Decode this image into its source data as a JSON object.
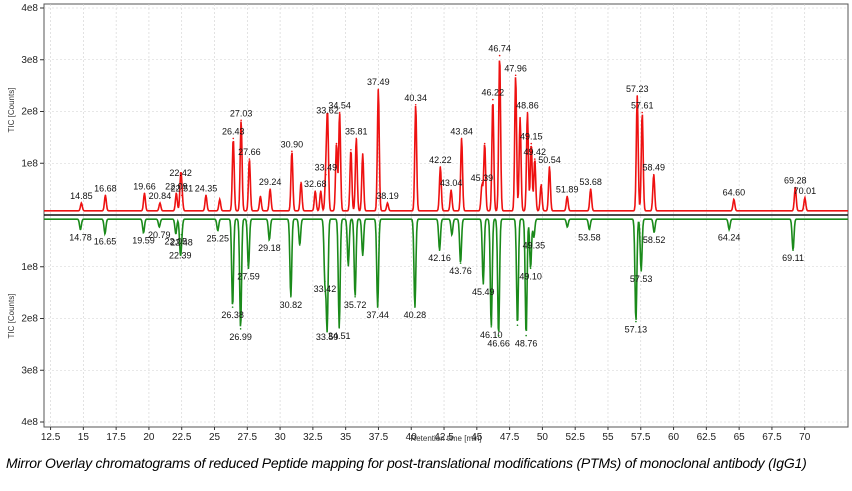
{
  "caption": "Mirror Overlay chromatograms of reduced Peptide mapping for post-translational modifications (PTMs) of monoclonal antibody (IgG1)",
  "chart_data": {
    "type": "line",
    "chart_style": "mirror",
    "xlabel": "Retention time [min]",
    "ylabel": "TIC [Counts]",
    "xlim": [
      12,
      73.3
    ],
    "ylim": [
      0,
      400000000
    ],
    "x_ticks": [
      "12.5",
      "15",
      "17.5",
      "20",
      "22.5",
      "25",
      "27.5",
      "30",
      "32.5",
      "35",
      "37.5",
      "40",
      "42.5",
      "45",
      "47.5",
      "50",
      "52.5",
      "55",
      "57.5",
      "60",
      "62.5",
      "65",
      "67.5",
      "70"
    ],
    "y_ticks_top": [
      "1e8",
      "2e8",
      "3e8",
      "4e8"
    ],
    "y_ticks_bottom": [
      "1e8",
      "2e8",
      "3e8",
      "4e8"
    ],
    "grid": true,
    "baseline": 8000000,
    "colors": {
      "top": "#ee1111",
      "bottom": "#1a8a1a",
      "grid": "#d0d0d0"
    },
    "series": [
      {
        "color": "#ee1111",
        "direction": "up",
        "peaks": [
          {
            "x": 14.85,
            "y": 15000000,
            "label": "14.85"
          },
          {
            "x": 16.68,
            "y": 30000000,
            "label": "16.68"
          },
          {
            "x": 19.66,
            "y": 34000000,
            "label": "19.66"
          },
          {
            "x": 20.84,
            "y": 15000000,
            "label": "20.84"
          },
          {
            "x": 22.09,
            "y": 34000000,
            "label": "22.09"
          },
          {
            "x": 22.42,
            "y": 60000000,
            "label": "22.42"
          },
          {
            "x": 22.51,
            "y": 30000000,
            "label": "22.51"
          },
          {
            "x": 24.35,
            "y": 30000000,
            "label": "24.35"
          },
          {
            "x": 25.4,
            "y": 22000000
          },
          {
            "x": 26.43,
            "y": 140000000,
            "label": "26.43"
          },
          {
            "x": 27.03,
            "y": 175000000,
            "label": "27.03"
          },
          {
            "x": 27.66,
            "y": 100000000,
            "label": "27.66"
          },
          {
            "x": 28.5,
            "y": 28000000
          },
          {
            "x": 29.24,
            "y": 42000000,
            "label": "29.24"
          },
          {
            "x": 30.9,
            "y": 115000000,
            "label": "30.90"
          },
          {
            "x": 31.6,
            "y": 55000000
          },
          {
            "x": 32.68,
            "y": 38000000,
            "label": "32.68"
          },
          {
            "x": 33.1,
            "y": 38000000
          },
          {
            "x": 33.49,
            "y": 70000000,
            "label": "33.49"
          },
          {
            "x": 33.62,
            "y": 180000000,
            "label": "33.62"
          },
          {
            "x": 34.3,
            "y": 130000000
          },
          {
            "x": 34.54,
            "y": 190000000,
            "label": "34.54"
          },
          {
            "x": 35.4,
            "y": 118000000
          },
          {
            "x": 35.81,
            "y": 140000000,
            "label": "35.81"
          },
          {
            "x": 36.3,
            "y": 110000000
          },
          {
            "x": 37.49,
            "y": 235000000,
            "label": "37.49"
          },
          {
            "x": 38.19,
            "y": 15000000,
            "label": "38.19"
          },
          {
            "x": 40.34,
            "y": 205000000,
            "label": "40.34"
          },
          {
            "x": 42.22,
            "y": 85000000,
            "label": "42.22"
          },
          {
            "x": 43.04,
            "y": 40000000,
            "label": "43.04"
          },
          {
            "x": 43.84,
            "y": 140000000,
            "label": "43.84"
          },
          {
            "x": 45.39,
            "y": 50000000,
            "label": "45.39"
          },
          {
            "x": 45.6,
            "y": 130000000
          },
          {
            "x": 46.22,
            "y": 215000000,
            "label": "46.22"
          },
          {
            "x": 46.74,
            "y": 300000000,
            "label": "46.74"
          },
          {
            "x": 47.96,
            "y": 262000000,
            "label": "47.96"
          },
          {
            "x": 48.3,
            "y": 180000000
          },
          {
            "x": 48.86,
            "y": 190000000,
            "label": "48.86"
          },
          {
            "x": 49.15,
            "y": 130000000,
            "label": "49.15"
          },
          {
            "x": 49.42,
            "y": 100000000,
            "label": "49.42"
          },
          {
            "x": 49.9,
            "y": 50000000
          },
          {
            "x": 50.54,
            "y": 85000000,
            "label": "50.54"
          },
          {
            "x": 51.89,
            "y": 28000000,
            "label": "51.89"
          },
          {
            "x": 53.68,
            "y": 42000000,
            "label": "53.68"
          },
          {
            "x": 57.23,
            "y": 222000000,
            "label": "57.23"
          },
          {
            "x": 57.61,
            "y": 190000000,
            "label": "57.61"
          },
          {
            "x": 58.49,
            "y": 70000000,
            "label": "58.49"
          },
          {
            "x": 64.6,
            "y": 22000000,
            "label": "64.60"
          },
          {
            "x": 69.28,
            "y": 45000000,
            "label": "69.28"
          },
          {
            "x": 70.01,
            "y": 25000000,
            "label": "70.01"
          }
        ]
      },
      {
        "color": "#1a8a1a",
        "direction": "down",
        "peaks": [
          {
            "x": 14.78,
            "y": 20000000,
            "label": "14.78"
          },
          {
            "x": 16.65,
            "y": 28000000,
            "label": "16.65"
          },
          {
            "x": 19.59,
            "y": 26000000,
            "label": "19.59"
          },
          {
            "x": 20.79,
            "y": 15000000,
            "label": "20.79"
          },
          {
            "x": 22.05,
            "y": 28000000,
            "label": "22.05"
          },
          {
            "x": 22.39,
            "y": 55000000,
            "label": "22.39"
          },
          {
            "x": 22.48,
            "y": 30000000,
            "label": "22.48"
          },
          {
            "x": 25.25,
            "y": 22000000,
            "label": "25.25"
          },
          {
            "x": 26.38,
            "y": 170000000,
            "label": "26.38"
          },
          {
            "x": 26.99,
            "y": 212000000,
            "label": "26.99"
          },
          {
            "x": 27.59,
            "y": 95000000,
            "label": "27.59"
          },
          {
            "x": 29.18,
            "y": 40000000,
            "label": "29.18"
          },
          {
            "x": 30.82,
            "y": 150000000,
            "label": "30.82"
          },
          {
            "x": 31.5,
            "y": 50000000
          },
          {
            "x": 33.42,
            "y": 120000000,
            "label": "33.42"
          },
          {
            "x": 33.59,
            "y": 212000000,
            "label": "33.59"
          },
          {
            "x": 34.51,
            "y": 210000000,
            "label": "34.51"
          },
          {
            "x": 35.2,
            "y": 90000000
          },
          {
            "x": 35.72,
            "y": 150000000,
            "label": "35.72"
          },
          {
            "x": 36.3,
            "y": 70000000
          },
          {
            "x": 37.44,
            "y": 170000000,
            "label": "37.44"
          },
          {
            "x": 40.28,
            "y": 170000000,
            "label": "40.28"
          },
          {
            "x": 42.16,
            "y": 60000000,
            "label": "42.16"
          },
          {
            "x": 43.1,
            "y": 30000000
          },
          {
            "x": 43.76,
            "y": 85000000,
            "label": "43.76"
          },
          {
            "x": 45.49,
            "y": 125000000,
            "label": "45.49"
          },
          {
            "x": 46.1,
            "y": 208000000,
            "label": "46.10"
          },
          {
            "x": 46.66,
            "y": 225000000,
            "label": "46.66"
          },
          {
            "x": 48.1,
            "y": 205000000
          },
          {
            "x": 48.76,
            "y": 225000000,
            "label": "48.76"
          },
          {
            "x": 49.1,
            "y": 95000000,
            "label": "49.10"
          },
          {
            "x": 49.35,
            "y": 35000000,
            "label": "49.35"
          },
          {
            "x": 51.9,
            "y": 15000000
          },
          {
            "x": 53.58,
            "y": 20000000,
            "label": "53.58"
          },
          {
            "x": 57.13,
            "y": 198000000,
            "label": "57.13"
          },
          {
            "x": 57.53,
            "y": 100000000,
            "label": "57.53"
          },
          {
            "x": 58.52,
            "y": 25000000,
            "label": "58.52"
          },
          {
            "x": 64.24,
            "y": 20000000,
            "label": "64.24"
          },
          {
            "x": 69.11,
            "y": 60000000,
            "label": "69.11"
          }
        ]
      }
    ]
  }
}
